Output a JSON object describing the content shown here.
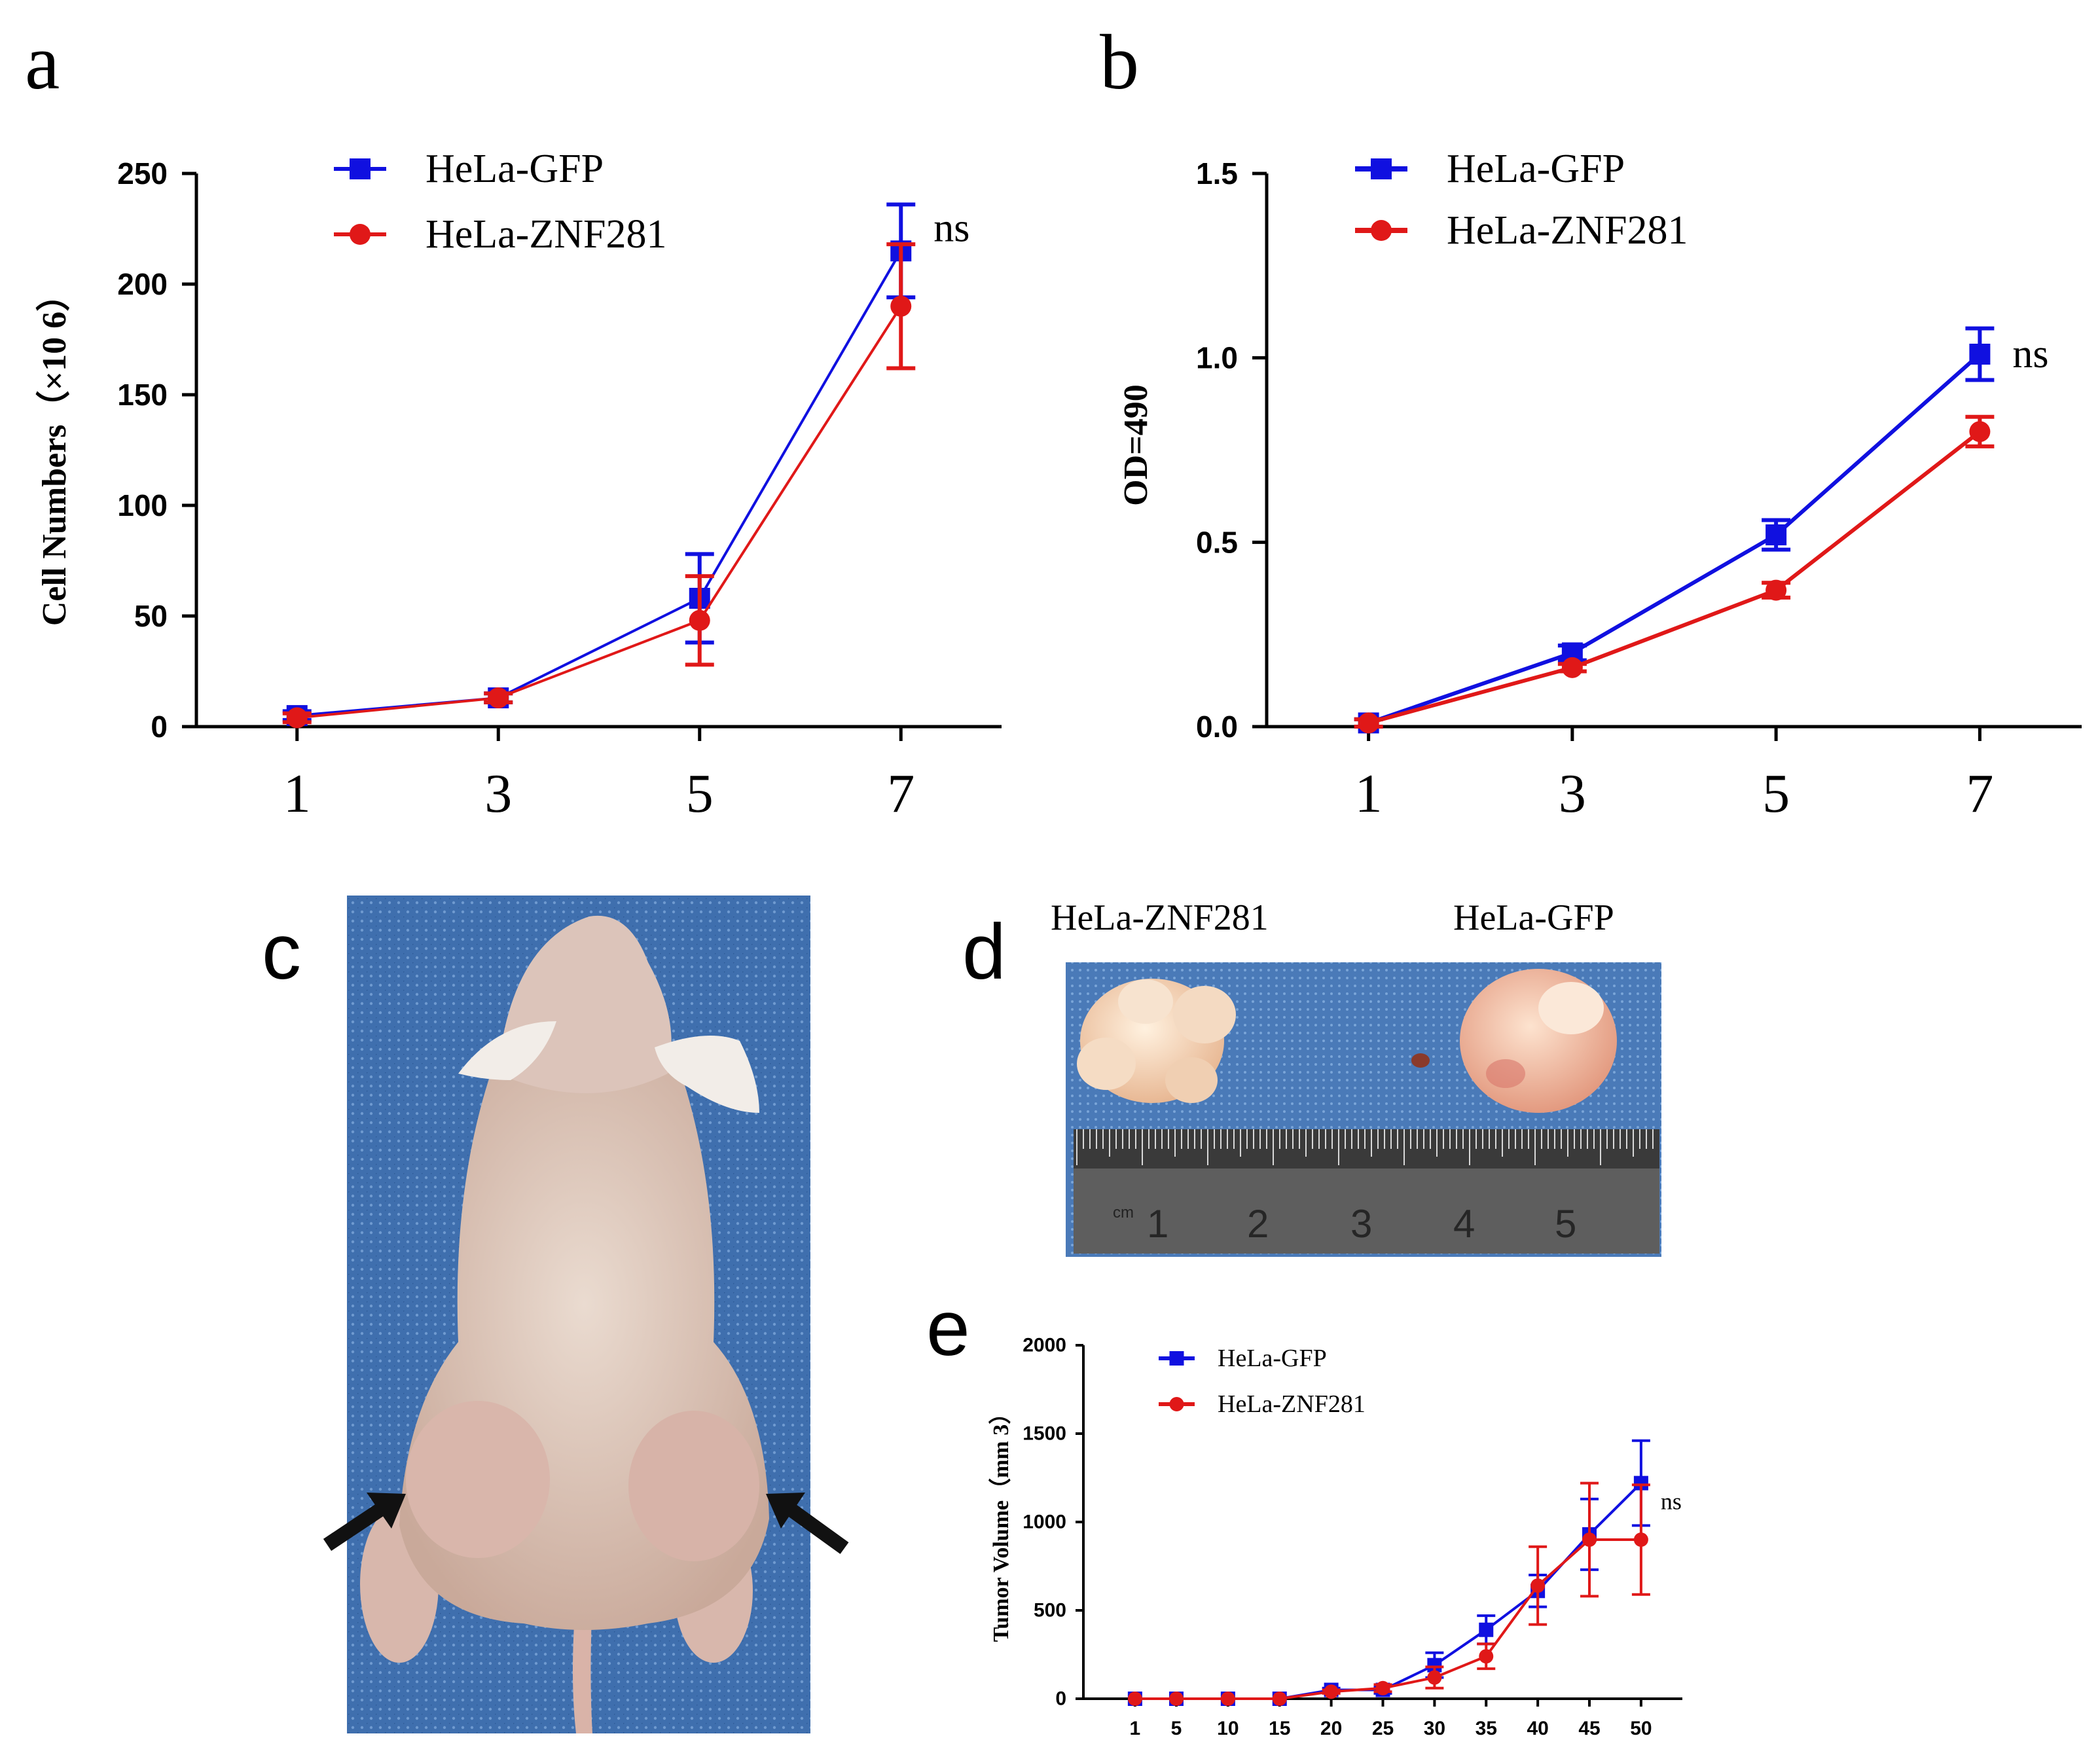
{
  "panels": {
    "a": "a",
    "b": "b",
    "c": "c",
    "d": "d",
    "e": "e"
  },
  "colors": {
    "gfp": "#1010e0",
    "znf": "#e01818"
  },
  "photo_d": {
    "left_label": "HeLa-ZNF281",
    "right_label": "HeLa-GFP"
  },
  "chart_data": [
    {
      "id": "a",
      "type": "line",
      "title": "",
      "xlabel": "",
      "ylabel": "Cell Numbers（×10 6）",
      "x": [
        1,
        3,
        5,
        7
      ],
      "xticks": [
        "1",
        "3",
        "5",
        "7"
      ],
      "ylim": [
        0,
        250
      ],
      "yticks": [
        0,
        50,
        100,
        150,
        200,
        250
      ],
      "legend": "top-left",
      "annotation": "ns",
      "series": [
        {
          "name": "HeLa-GFP",
          "values": [
            5,
            13,
            58,
            215
          ],
          "errors": [
            2,
            2,
            20,
            21
          ]
        },
        {
          "name": "HeLa-ZNF281",
          "values": [
            4,
            13,
            48,
            190
          ],
          "errors": [
            2,
            2,
            20,
            28
          ]
        }
      ]
    },
    {
      "id": "b",
      "type": "line",
      "title": "",
      "xlabel": "",
      "ylabel": "OD=490",
      "x": [
        1,
        3,
        5,
        7
      ],
      "xticks": [
        "1",
        "3",
        "5",
        "7"
      ],
      "ylim": [
        0,
        1.5
      ],
      "yticks": [
        "0.0",
        "0.5",
        "1.0",
        "1.5"
      ],
      "legend": "top-left",
      "annotation": "ns",
      "series": [
        {
          "name": "HeLa-GFP",
          "values": [
            0.01,
            0.2,
            0.52,
            1.01
          ],
          "errors": [
            0.01,
            0.02,
            0.04,
            0.07
          ]
        },
        {
          "name": "HeLa-ZNF281",
          "values": [
            0.01,
            0.16,
            0.37,
            0.8
          ],
          "errors": [
            0.01,
            0.01,
            0.02,
            0.04
          ]
        }
      ]
    },
    {
      "id": "e",
      "type": "line",
      "title": "",
      "xlabel": "",
      "ylabel": "Tumor Volume（mm 3）",
      "x": [
        1,
        5,
        10,
        15,
        20,
        25,
        30,
        35,
        40,
        45,
        50
      ],
      "xticks": [
        "1",
        "5",
        "10",
        "15",
        "20",
        "25",
        "30",
        "35",
        "40",
        "45",
        "50"
      ],
      "ylim": [
        0,
        2000
      ],
      "yticks": [
        0,
        500,
        1000,
        1500,
        2000
      ],
      "legend": "top-left",
      "annotation": "ns",
      "series": [
        {
          "name": "HeLa-GFP",
          "values": [
            0,
            0,
            0,
            0,
            50,
            50,
            190,
            390,
            610,
            930,
            1220
          ],
          "errors": [
            0,
            0,
            0,
            0,
            10,
            20,
            70,
            80,
            90,
            200,
            240
          ]
        },
        {
          "name": "HeLa-ZNF281",
          "values": [
            0,
            0,
            0,
            0,
            40,
            60,
            120,
            240,
            640,
            900,
            900
          ],
          "errors": [
            0,
            0,
            0,
            0,
            10,
            20,
            60,
            70,
            220,
            320,
            310
          ]
        }
      ]
    }
  ]
}
